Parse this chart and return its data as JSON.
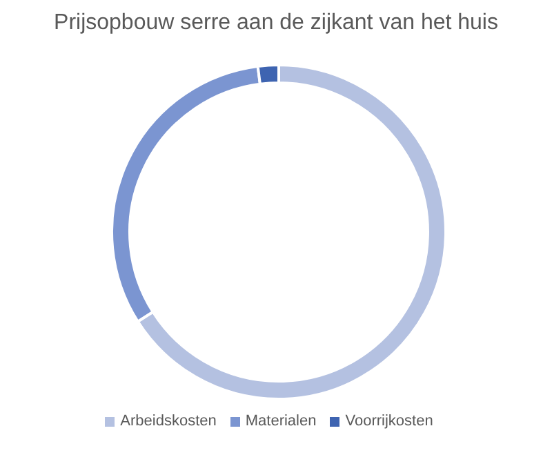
{
  "chart_data": {
    "type": "donut",
    "title": "Prijsopbouw serre aan de zijkant van het huis",
    "categories": [
      "Arbeidskosten",
      "Materialen",
      "Voorrijkosten"
    ],
    "values": [
      66,
      32,
      2
    ],
    "colors": [
      "#b4c1e1",
      "#7b95d1",
      "#3e64b1"
    ],
    "legend": "bottom"
  }
}
